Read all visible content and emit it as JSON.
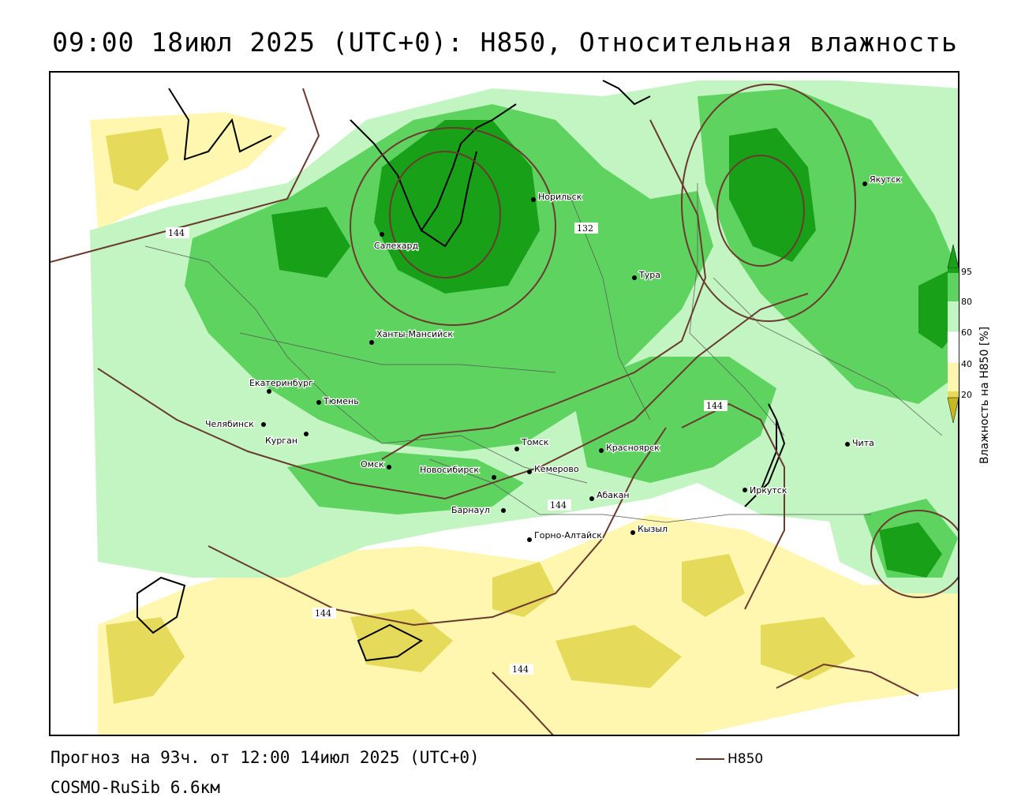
{
  "title": "09:00 18июл 2025 (UTC+0): H850, Относительная влажность",
  "footer": {
    "forecast": "Прогноз на 93ч. от 12:00 14июл 2025 (UTC+0)",
    "model": "COSMO-RuSib 6.6км",
    "contour_legend": "H850"
  },
  "legend": {
    "title": "Влажность на H850 [%]",
    "ticks": [
      "95",
      "80",
      "60",
      "40",
      "20"
    ],
    "colors": {
      "very_dry": "#c8b81e",
      "dry": "#e6da5a",
      "semi_dry": "#fff6b0",
      "neutral": "#ffffff",
      "light_green": "#c2f5c2",
      "green": "#5fd35f",
      "dark_green": "#18a018",
      "contour": "#6b3a2e"
    }
  },
  "contour_labels": [
    "144",
    "132",
    "144",
    "144",
    "144",
    "144"
  ],
  "cities": [
    {
      "name": "Норильск"
    },
    {
      "name": "Салехард"
    },
    {
      "name": "Тура"
    },
    {
      "name": "Якутск"
    },
    {
      "name": "Ханты-Мансийск"
    },
    {
      "name": "Екатеринбург"
    },
    {
      "name": "Тюмень"
    },
    {
      "name": "Челябинск"
    },
    {
      "name": "Курган"
    },
    {
      "name": "Омск"
    },
    {
      "name": "Новосибирск"
    },
    {
      "name": "Томск"
    },
    {
      "name": "Кемерово"
    },
    {
      "name": "Красноярск"
    },
    {
      "name": "Барнаул"
    },
    {
      "name": "Абакан"
    },
    {
      "name": "Горно-Алтайск"
    },
    {
      "name": "Кызыл"
    },
    {
      "name": "Иркутск"
    },
    {
      "name": "Чита"
    }
  ]
}
